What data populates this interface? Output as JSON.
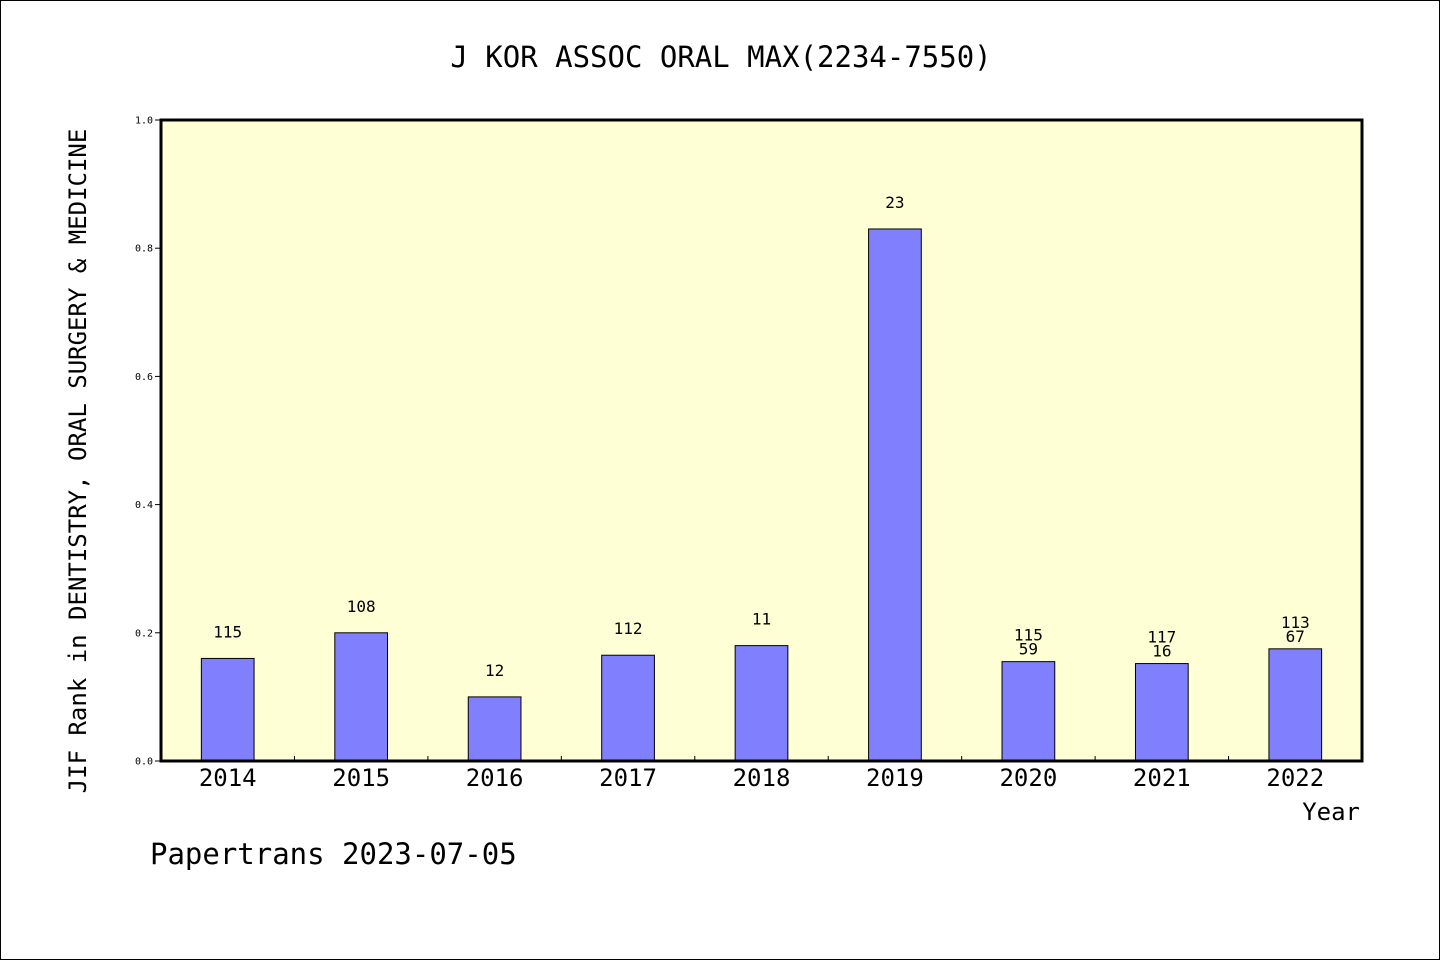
{
  "chart_data": {
    "type": "bar",
    "title": "J KOR ASSOC ORAL MAX(2234-7550)",
    "xlabel": "Year",
    "ylabel": "JIF Rank in DENTISTRY, ORAL SURGERY & MEDICINE",
    "ylim": [
      0.0,
      1.0
    ],
    "yticks": [
      "0.0",
      "0.2",
      "0.4",
      "0.6",
      "0.8",
      "1.0"
    ],
    "categories": [
      "2014",
      "2015",
      "2016",
      "2017",
      "2018",
      "2019",
      "2020",
      "2021",
      "2022"
    ],
    "values": [
      0.16,
      0.2,
      0.1,
      0.165,
      0.18,
      0.83,
      0.155,
      0.152,
      0.175
    ],
    "bar_labels": [
      [
        "115"
      ],
      [
        "108"
      ],
      [
        "12"
      ],
      [
        "112"
      ],
      [
        "11"
      ],
      [
        "23"
      ],
      [
        "115",
        "59"
      ],
      [
        "117",
        "16"
      ],
      [
        "113",
        "67"
      ]
    ],
    "grid": false,
    "colors": {
      "bar": "#8080ff",
      "plot_background": "#ffffd5"
    }
  },
  "footer": {
    "text": "Papertrans 2023-07-05"
  }
}
